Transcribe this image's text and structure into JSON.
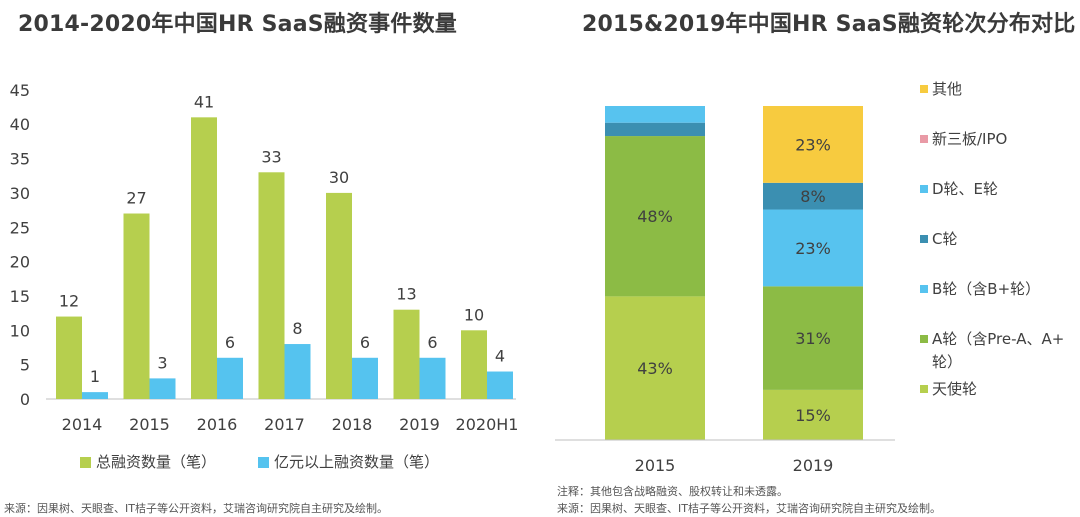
{
  "left_source": "来源：因果树、天眼查、IT桔子等公开资料，艾瑞咨询研究院自主研究及绘制。",
  "right_note": "注释：其他包含战略融资、股权转让和未透露。",
  "right_source": "来源：因果树、天眼查、IT桔子等公开资料，艾瑞咨询研究院自主研究及绘制。",
  "colors": {
    "green_light": "#b6cf4e",
    "blue_light": "#55c3ef",
    "green_mid": "#8cbb45",
    "blue_sky": "#57c3ef",
    "teal": "#3b8fb1",
    "pink": "#e99aa6",
    "yellow": "#f7cb3f"
  },
  "chart_data": [
    {
      "type": "bar",
      "title": "2014-2020年中国HR SaaS融资事件数量",
      "categories": [
        "2014",
        "2015",
        "2016",
        "2017",
        "2018",
        "2019",
        "2020H1"
      ],
      "series": [
        {
          "name": "总融资数量（笔）",
          "values": [
            12,
            27,
            41,
            33,
            30,
            13,
            10
          ],
          "value_labels": [
            "12",
            "27",
            "41",
            "33",
            "30",
            "13",
            "10"
          ]
        },
        {
          "name": "亿元以上融资数量（笔）",
          "values": [
            1,
            3,
            6,
            8,
            6,
            6,
            4
          ],
          "value_labels": [
            "1",
            "3",
            "6",
            "8",
            "6",
            "6",
            "4"
          ]
        }
      ],
      "ylim": [
        0,
        45
      ],
      "yticks": [
        "0",
        "5",
        "10",
        "15",
        "20",
        "25",
        "30",
        "35",
        "40",
        "45"
      ],
      "xlabel": "",
      "ylabel": "",
      "legend": "bottom"
    },
    {
      "type": "bar",
      "stacked": true,
      "title": "2015&2019年中国HR SaaS融资轮次分布对比",
      "categories": [
        "2015",
        "2019"
      ],
      "series": [
        {
          "name": "天使轮",
          "values": [
            43,
            15
          ],
          "value_labels": [
            "43%",
            "15%"
          ]
        },
        {
          "name": "A轮（含Pre-A、A+轮）",
          "values": [
            48,
            31
          ],
          "value_labels": [
            "48%",
            "31%"
          ]
        },
        {
          "name": "B轮（含B+轮）",
          "values": [
            0,
            23
          ],
          "value_labels": [
            "",
            "23%"
          ]
        },
        {
          "name": "C轮",
          "values": [
            4,
            8
          ],
          "value_labels": [
            "",
            "8%"
          ]
        },
        {
          "name": "D轮、E轮",
          "values": [
            5,
            0
          ],
          "value_labels": [
            "",
            ""
          ]
        },
        {
          "name": "新三板/IPO",
          "values": [
            0,
            0
          ],
          "value_labels": [
            "",
            ""
          ]
        },
        {
          "name": "其他",
          "values": [
            0,
            23
          ],
          "value_labels": [
            "",
            "23%"
          ]
        }
      ],
      "ylim": [
        0,
        100
      ],
      "legend": "right",
      "legend_order": [
        "其他",
        "新三板/IPO",
        "D轮、E轮",
        "C轮",
        "B轮（含B+轮）",
        "A轮（含Pre-A、A+轮）",
        "天使轮"
      ],
      "legend_lines": [
        [
          "其他"
        ],
        [
          "新三板/IPO"
        ],
        [
          "D轮、E轮"
        ],
        [
          "C轮"
        ],
        [
          "B轮（含B+轮）"
        ],
        [
          "A轮（含Pre-A、A+",
          "轮）"
        ],
        [
          "天使轮"
        ]
      ]
    }
  ]
}
